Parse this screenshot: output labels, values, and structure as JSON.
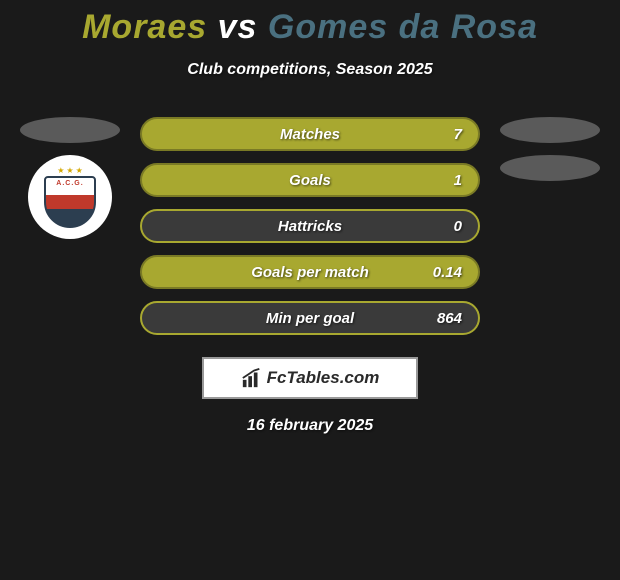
{
  "title": {
    "player1": "Moraes",
    "vs": "vs",
    "player2": "Gomes da Rosa",
    "player1_color": "#a8a830",
    "player2_color": "#4a7080"
  },
  "subtitle": "Club competitions, Season 2025",
  "left_side": {
    "ellipse_color": "#5a5a5a",
    "badge_text": "A.C.G."
  },
  "right_side": {
    "ellipse1_color": "#5a5a5a",
    "ellipse2_color": "#5a5a5a"
  },
  "stats": [
    {
      "label": "Matches",
      "value": "7",
      "fill_color": "#a8a830",
      "border_color": "#7a7a25"
    },
    {
      "label": "Goals",
      "value": "1",
      "fill_color": "#a8a830",
      "border_color": "#7a7a25"
    },
    {
      "label": "Hattricks",
      "value": "0",
      "fill_color": "#3a3a3a",
      "border_color": "#a8a830"
    },
    {
      "label": "Goals per match",
      "value": "0.14",
      "fill_color": "#a8a830",
      "border_color": "#7a7a25"
    },
    {
      "label": "Min per goal",
      "value": "864",
      "fill_color": "#3a3a3a",
      "border_color": "#a8a830"
    }
  ],
  "footer": {
    "logo_text": "FcTables.com",
    "date": "16 february 2025"
  },
  "background_color": "#1a1a1a"
}
